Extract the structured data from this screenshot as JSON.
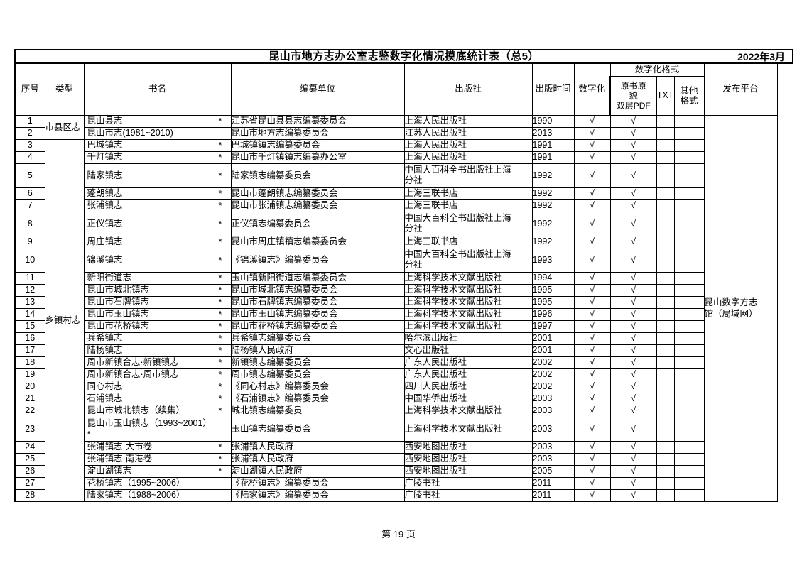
{
  "page": {
    "title": "昆山市地方志办公室志鉴数字化情况摸底统计表（总5）",
    "date": "2022年3月",
    "footer": "第 19 页"
  },
  "table": {
    "headers": {
      "no": "序号",
      "type": "类型",
      "name": "书名",
      "unit": "编纂单位",
      "publisher": "出版社",
      "pub_time": "出版时间",
      "digitized": "数字化",
      "format_group": "数字化格式",
      "format_pdf": "原书原貌双层PDF",
      "format_pdf_lines": [
        "原书原",
        "貌",
        "双层PDF"
      ],
      "format_txt": "TXT",
      "format_other": "其他格式",
      "platform": "发布平台"
    },
    "star_mark": "*",
    "check_mark": "√",
    "type_groups": [
      {
        "label": "市县区志",
        "start": 1,
        "span": 2
      },
      {
        "label": "乡镇村志",
        "start": 3,
        "span": 26
      }
    ],
    "platform_cell": {
      "label": "昆山数字方志馆（局域网）",
      "start": 1,
      "span": 28
    },
    "rows": [
      {
        "no": "1",
        "name": "昆山县志",
        "star": "right",
        "unit": "江苏省昆山县县志编纂委员会",
        "publisher": "上海人民出版社",
        "year": "1990",
        "digitized": "√",
        "pdf": "√",
        "txt": "",
        "other": "",
        "tall": false
      },
      {
        "no": "2",
        "name": "昆山市志(1981~2010)",
        "star": "none",
        "unit": "昆山市地方志编纂委员会",
        "publisher": "江苏人民出版社",
        "year": "2013",
        "digitized": "√",
        "pdf": "√",
        "txt": "",
        "other": "",
        "tall": false
      },
      {
        "no": "3",
        "name": "巴城镇志",
        "star": "right",
        "unit": "巴城镇镇志编纂委员会",
        "publisher": "上海人民出版社",
        "year": "1991",
        "digitized": "√",
        "pdf": "√",
        "txt": "",
        "other": "",
        "tall": false
      },
      {
        "no": "4",
        "name": "千灯镇志",
        "star": "right",
        "unit": "昆山市千灯镇镇志编纂办公室",
        "publisher": "上海人民出版社",
        "year": "1991",
        "digitized": "√",
        "pdf": "√",
        "txt": "",
        "other": "",
        "tall": false
      },
      {
        "no": "5",
        "name": "陆家镇志",
        "star": "right",
        "unit": "陆家镇志编纂委员会",
        "publisher": "中国大百科全书出版社上海分社",
        "year": "1992",
        "digitized": "√",
        "pdf": "√",
        "txt": "",
        "other": "",
        "tall": true
      },
      {
        "no": "6",
        "name": "蓬朗镇志",
        "star": "right",
        "unit": "昆山市蓬朗镇志编纂委员会",
        "publisher": "上海三联书店",
        "year": "1992",
        "digitized": "√",
        "pdf": "√",
        "txt": "",
        "other": "",
        "tall": false
      },
      {
        "no": "7",
        "name": "张浦镇志",
        "star": "right",
        "unit": "昆山市张浦镇志编纂委员会",
        "publisher": "上海三联书店",
        "year": "1992",
        "digitized": "√",
        "pdf": "√",
        "txt": "",
        "other": "",
        "tall": false
      },
      {
        "no": "8",
        "name": "正仪镇志",
        "star": "right",
        "unit": "正仪镇志编纂委员会",
        "publisher": "中国大百科全书出版社上海分社",
        "year": "1992",
        "digitized": "√",
        "pdf": "√",
        "txt": "",
        "other": "",
        "tall": true
      },
      {
        "no": "9",
        "name": "周庄镇志",
        "star": "right",
        "unit": "昆山市周庄镇镇志编纂委员会",
        "publisher": "上海三联书店",
        "year": "1992",
        "digitized": "√",
        "pdf": "√",
        "txt": "",
        "other": "",
        "tall": false
      },
      {
        "no": "10",
        "name": "锦溪镇志",
        "star": "right",
        "unit": "《锦溪镇志》编纂委员会",
        "publisher": "中国大百科全书出版社上海分社",
        "year": "1993",
        "digitized": "√",
        "pdf": "√",
        "txt": "",
        "other": "",
        "tall": true
      },
      {
        "no": "11",
        "name": "新阳街道志",
        "star": "right",
        "unit": "玉山镇新阳街道志编纂委员会",
        "publisher": "上海科学技术文献出版社",
        "year": "1994",
        "digitized": "√",
        "pdf": "√",
        "txt": "",
        "other": "",
        "tall": false
      },
      {
        "no": "12",
        "name": "昆山市城北镇志",
        "star": "right",
        "unit": "昆山市城北镇志编纂委员会",
        "publisher": "上海科学技术文献出版社",
        "year": "1995",
        "digitized": "√",
        "pdf": "√",
        "txt": "",
        "other": "",
        "tall": false
      },
      {
        "no": "13",
        "name": "昆山市石牌镇志",
        "star": "right",
        "unit": "昆山市石牌镇志编纂委员会",
        "publisher": "上海科学技术文献出版社",
        "year": "1995",
        "digitized": "√",
        "pdf": "√",
        "txt": "",
        "other": "",
        "tall": false
      },
      {
        "no": "14",
        "name": "昆山市玉山镇志",
        "star": "right",
        "unit": "昆山市玉山镇志编纂委员会",
        "publisher": "上海科学技术文献出版社",
        "year": "1996",
        "digitized": "√",
        "pdf": "√",
        "txt": "",
        "other": "",
        "tall": false
      },
      {
        "no": "15",
        "name": "昆山市花桥镇志",
        "star": "right",
        "unit": "昆山市花桥镇志编纂委员会",
        "publisher": "上海科学技术文献出版社",
        "year": "1997",
        "digitized": "√",
        "pdf": "√",
        "txt": "",
        "other": "",
        "tall": false
      },
      {
        "no": "16",
        "name": "兵希镇志",
        "star": "right",
        "unit": "兵希镇志编纂委员会",
        "publisher": "哈尔滨出版社",
        "year": "2001",
        "digitized": "√",
        "pdf": "√",
        "txt": "",
        "other": "",
        "tall": false
      },
      {
        "no": "17",
        "name": "陆杨镇志",
        "star": "right",
        "unit": "陆杨镇人民政府",
        "publisher": "文心出版社",
        "year": "2001",
        "digitized": "√",
        "pdf": "√",
        "txt": "",
        "other": "",
        "tall": false
      },
      {
        "no": "18",
        "name": "周市新镇合志·新镇镇志",
        "star": "right",
        "unit": "新镇镇志编纂委员会",
        "publisher": "广东人民出版社",
        "year": "2002",
        "digitized": "√",
        "pdf": "√",
        "txt": "",
        "other": "",
        "tall": false
      },
      {
        "no": "19",
        "name": "周市新镇合志·周市镇志",
        "star": "right",
        "unit": "周市镇志编纂委员会",
        "publisher": "广东人民出版社",
        "year": "2002",
        "digitized": "√",
        "pdf": "√",
        "txt": "",
        "other": "",
        "tall": false
      },
      {
        "no": "20",
        "name": "同心村志",
        "star": "right",
        "unit": "《同心村志》编纂委员会",
        "publisher": "四川人民出版社",
        "year": "2002",
        "digitized": "√",
        "pdf": "√",
        "txt": "",
        "other": "",
        "tall": false
      },
      {
        "no": "21",
        "name": "石浦镇志",
        "star": "right",
        "unit": "《石浦镇志》编纂委员会",
        "publisher": "中国华侨出版社",
        "year": "2003",
        "digitized": "√",
        "pdf": "√",
        "txt": "",
        "other": "",
        "tall": false
      },
      {
        "no": "22",
        "name": "昆山市城北镇志（续集）",
        "star": "right",
        "unit": "城北镇志编纂委员",
        "publisher": "上海科学技术文献出版社",
        "year": "2003",
        "digitized": "√",
        "pdf": "√",
        "txt": "",
        "other": "",
        "tall": false
      },
      {
        "no": "23",
        "name": "昆山市玉山镇志（1993~2001）",
        "star": "wrap",
        "unit": "玉山镇志编纂委员会",
        "publisher": "上海科学技术文献出版社",
        "year": "2003",
        "digitized": "√",
        "pdf": "√",
        "txt": "",
        "other": "",
        "tall": true
      },
      {
        "no": "24",
        "name": "张浦镇志·大市卷",
        "star": "right",
        "unit": "张浦镇人民政府",
        "publisher": "西安地图出版社",
        "year": "2003",
        "digitized": "√",
        "pdf": "√",
        "txt": "",
        "other": "",
        "tall": false
      },
      {
        "no": "25",
        "name": "张浦镇志·南港卷",
        "star": "right",
        "unit": "张浦镇人民政府",
        "publisher": "西安地图出版社",
        "year": "2003",
        "digitized": "√",
        "pdf": "√",
        "txt": "",
        "other": "",
        "tall": false
      },
      {
        "no": "26",
        "name": "淀山湖镇志",
        "star": "right",
        "unit": "淀山湖镇人民政府",
        "publisher": "西安地图出版社",
        "year": "2005",
        "digitized": "√",
        "pdf": "√",
        "txt": "",
        "other": "",
        "tall": false
      },
      {
        "no": "27",
        "name": "花桥镇志（1995~2006）",
        "star": "none",
        "unit": "《花桥镇志》编纂委员会",
        "publisher": "广陵书社",
        "year": "2011",
        "digitized": "√",
        "pdf": "√",
        "txt": "",
        "other": "",
        "tall": false
      },
      {
        "no": "28",
        "name": "陆家镇志（1988~2006）",
        "star": "none",
        "unit": "《陆家镇志》编纂委员会",
        "publisher": "广陵书社",
        "year": "2011",
        "digitized": "√",
        "pdf": "√",
        "txt": "",
        "other": "",
        "tall": false
      }
    ]
  }
}
